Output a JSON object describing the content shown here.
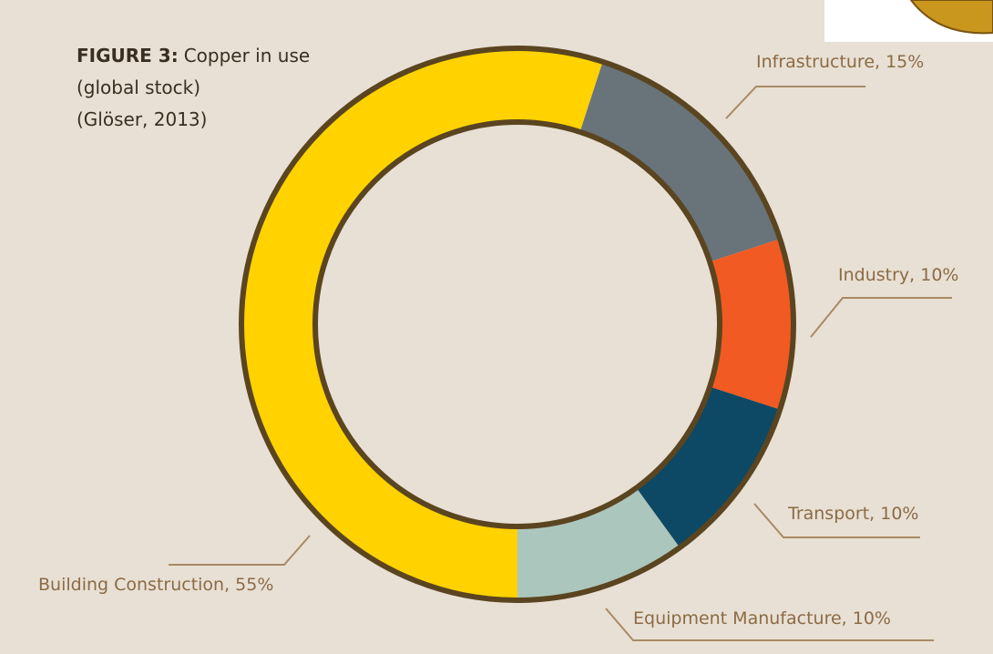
{
  "chart_data": {
    "type": "donut",
    "title": {
      "label": "FIGURE 3:",
      "text": "Copper in use"
    },
    "subtitle": [
      "(global stock)",
      "(Glöser, 2013)"
    ],
    "labels": [
      "Building Construction, 55%",
      "Infrastructure, 15%",
      "Industry, 10%",
      "Transport, 10%",
      "Equipment Manufacture, 10%"
    ],
    "values": [
      55,
      15,
      10,
      10,
      10
    ],
    "colors": [
      "#ffd200",
      "#69737a",
      "#f15a22",
      "#0d4864",
      "#abc6bd"
    ]
  }
}
